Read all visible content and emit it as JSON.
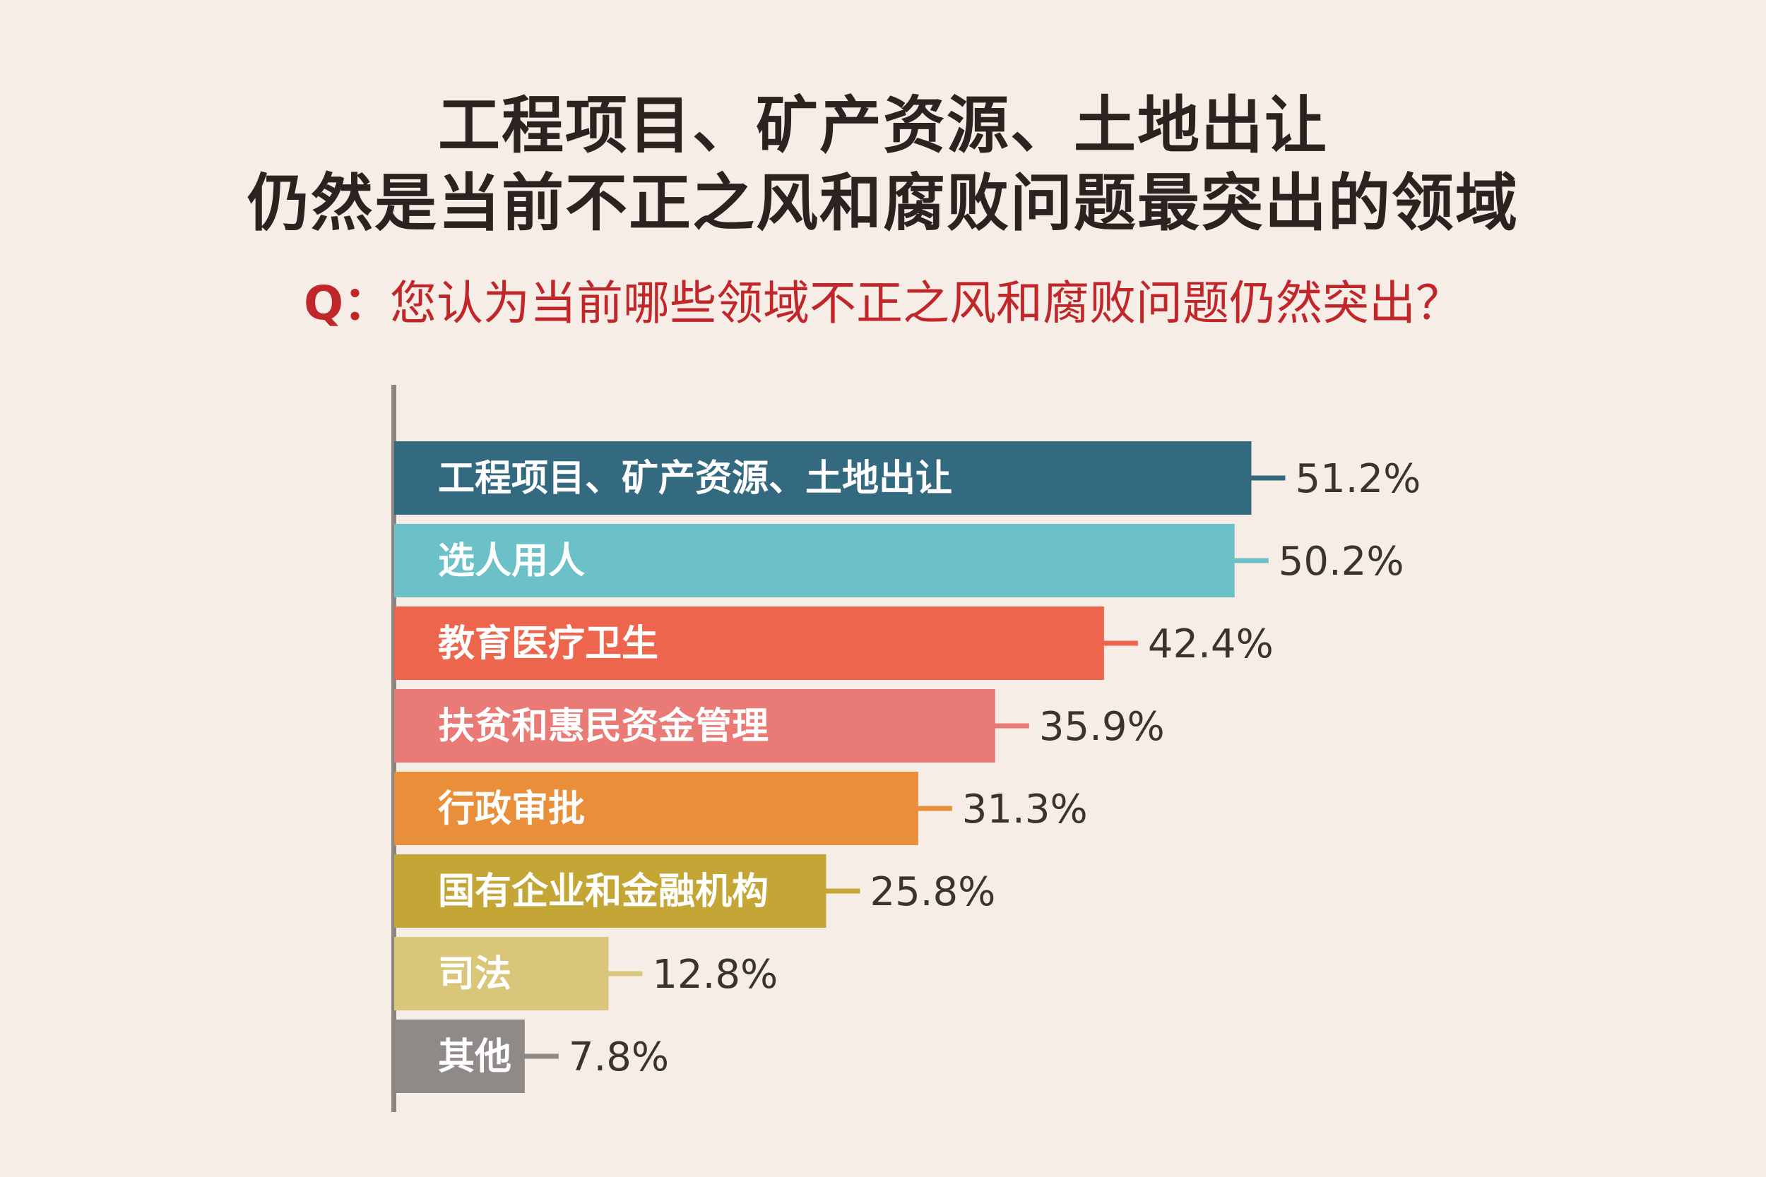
{
  "header": {
    "title_line_1": "工程项目、矿产资源、土地出让",
    "title_line_2": "仍然是当前不正之风和腐败问题最突出的领域",
    "question_label": "Q：",
    "question_text": "您认为当前哪些领域不正之风和腐败问题仍然突出？"
  },
  "chart_data": {
    "type": "bar",
    "orientation": "horizontal",
    "categories": [
      "工程项目、矿产资源、土地出让",
      "选人用人",
      "教育医疗卫生",
      "扶贫和惠民资金管理",
      "行政审批",
      "国有企业和金融机构",
      "司法",
      "其他"
    ],
    "values": [
      51.2,
      50.2,
      42.4,
      35.9,
      31.3,
      25.8,
      12.8,
      7.8
    ],
    "value_labels": [
      "51.2%",
      "50.2%",
      "42.4%",
      "35.9%",
      "31.3%",
      "25.8%",
      "12.8%",
      "7.8%"
    ],
    "colors": [
      "#346a7f",
      "#6cc1c9",
      "#ec654c",
      "#e97a76",
      "#e98f3a",
      "#c4a636",
      "#d9c678",
      "#8f8a88"
    ],
    "value_unit": "%",
    "grid": false,
    "legend": "none"
  }
}
